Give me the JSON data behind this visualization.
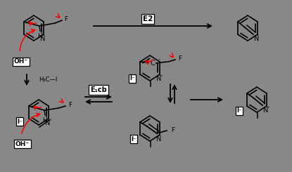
{
  "bg_color": "#888888",
  "fig_width": 4.15,
  "fig_height": 2.45,
  "dpi": 100,
  "layout": {
    "xlim": [
      0,
      415
    ],
    "ylim": [
      0,
      245
    ]
  },
  "colors": {
    "black": "#000000",
    "red": "#cc0000",
    "white": "#ffffff"
  }
}
